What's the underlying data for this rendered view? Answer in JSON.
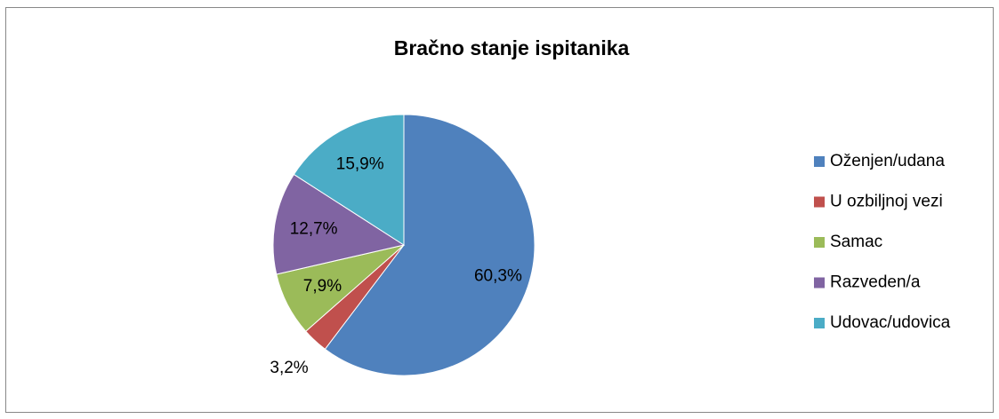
{
  "chart_data": {
    "type": "pie",
    "title": "Bračno stanje ispitanika",
    "categories": [
      "Oženjen/udana",
      "U ozbiljnoj vezi",
      "Samac",
      "Razveden/a",
      "Udovac/udovica"
    ],
    "values": [
      60.3,
      3.2,
      7.9,
      12.7,
      15.9
    ],
    "value_labels": [
      "60,3%",
      "3,2%",
      "7,9%",
      "12,7%",
      "15,9%"
    ],
    "colors": [
      "#4f81bd",
      "#c0504d",
      "#9bbb59",
      "#8064a2",
      "#4bacc6"
    ],
    "legend": "right"
  }
}
